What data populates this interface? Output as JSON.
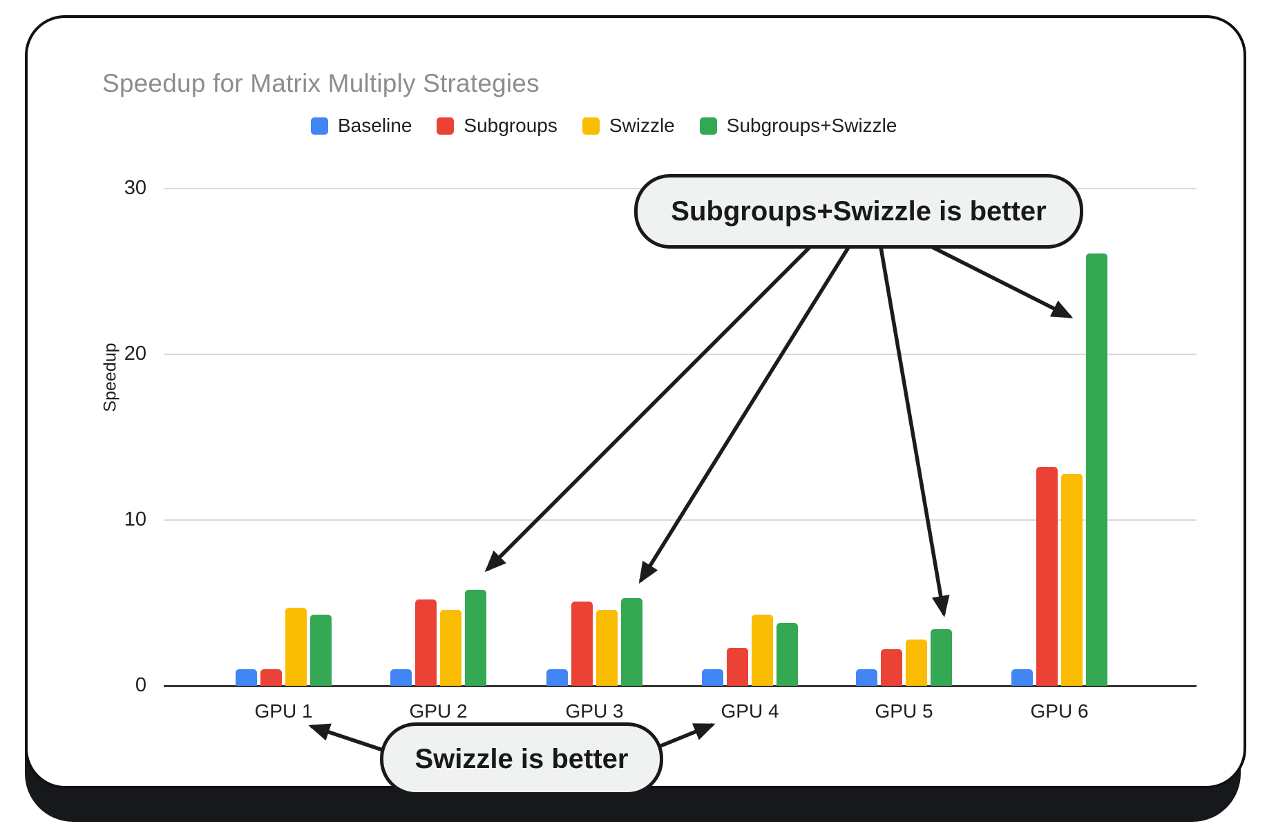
{
  "annotations": {
    "callout_top": "Subgroups+Swizzle is better",
    "callout_bottom": "Swizzle is better"
  },
  "chart_data": {
    "type": "bar",
    "title": "Speedup for Matrix Multiply Strategies",
    "xlabel": "",
    "ylabel": "Speedup",
    "categories": [
      "GPU 1",
      "GPU 2",
      "GPU 3",
      "GPU 4",
      "GPU 5",
      "GPU 6"
    ],
    "series": [
      {
        "name": "Baseline",
        "color": "#4285F4",
        "values": [
          1.0,
          1.0,
          1.0,
          1.0,
          1.0,
          1.0
        ]
      },
      {
        "name": "Subgroups",
        "color": "#EA4335",
        "values": [
          1.0,
          5.2,
          5.1,
          2.3,
          2.2,
          13.2
        ]
      },
      {
        "name": "Swizzle",
        "color": "#FBBC04",
        "values": [
          4.7,
          4.6,
          4.6,
          4.3,
          2.8,
          12.8
        ]
      },
      {
        "name": "Subgroups+Swizzle",
        "color": "#34A853",
        "values": [
          4.3,
          5.8,
          5.3,
          3.8,
          3.4,
          26.1
        ]
      }
    ],
    "yticks": [
      0,
      10,
      20,
      30
    ],
    "ylim": [
      0,
      31
    ],
    "grid": true,
    "legend_position": "top",
    "annotation_targets": {
      "callout_top_points_to": [
        "GPU 2 green bar",
        "GPU 3 green bar",
        "GPU 5 green bar",
        "GPU 6 green bar"
      ],
      "callout_bottom_points_to": [
        "GPU 1",
        "GPU 4"
      ]
    }
  }
}
